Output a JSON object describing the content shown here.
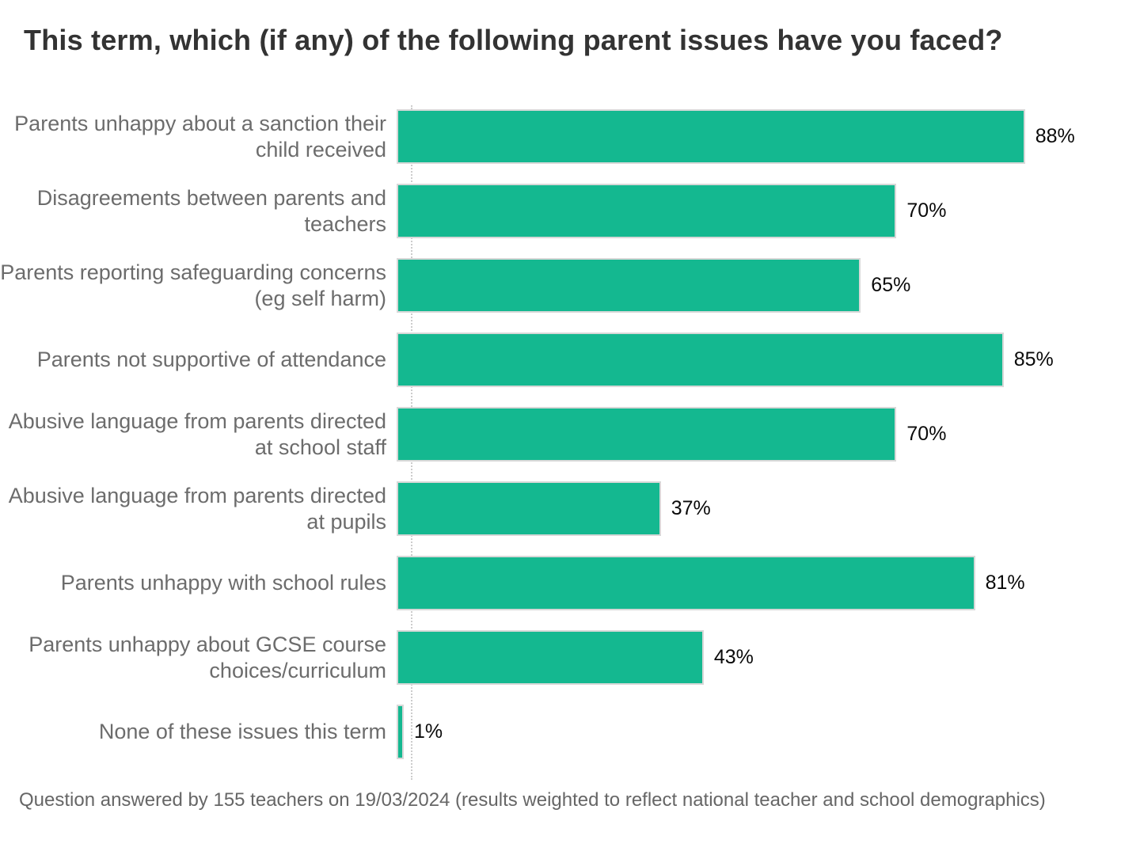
{
  "title": "This term, which (if any) of the following parent issues have you faced?",
  "footer": "Question answered by 155 teachers on 19/03/2024 (results weighted to reflect national teacher and school demographics)",
  "colors": {
    "bar_fill": "#14b890",
    "bar_border": "#d8d8d8",
    "title_text": "#333333",
    "category_text": "#6c6c6c",
    "value_text": "#0a0a0a",
    "footnote_text": "#666666",
    "axis_line": "#cccccc",
    "background": "#ffffff"
  },
  "chart_data": {
    "type": "bar",
    "orientation": "horizontal",
    "title": "This term, which (if any) of the following parent issues have you faced?",
    "xlabel": "",
    "ylabel": "",
    "xlim": [
      0,
      100
    ],
    "grid": false,
    "legend": false,
    "value_suffix": "%",
    "categories": [
      "Parents unhappy about a sanction their child received",
      "Disagreements between parents and teachers",
      "Parents reporting safeguarding concerns (eg self harm)",
      "Parents not supportive of attendance",
      "Abusive language from parents directed at school staff",
      "Abusive language from parents directed at pupils",
      "Parents unhappy with school rules",
      "Parents unhappy about GCSE course choices/curriculum",
      "None of these issues this term"
    ],
    "values": [
      88,
      70,
      65,
      85,
      70,
      37,
      81,
      43,
      1
    ],
    "value_labels": [
      "88%",
      "70%",
      "65%",
      "85%",
      "70%",
      "37%",
      "81%",
      "43%",
      "1%"
    ]
  }
}
